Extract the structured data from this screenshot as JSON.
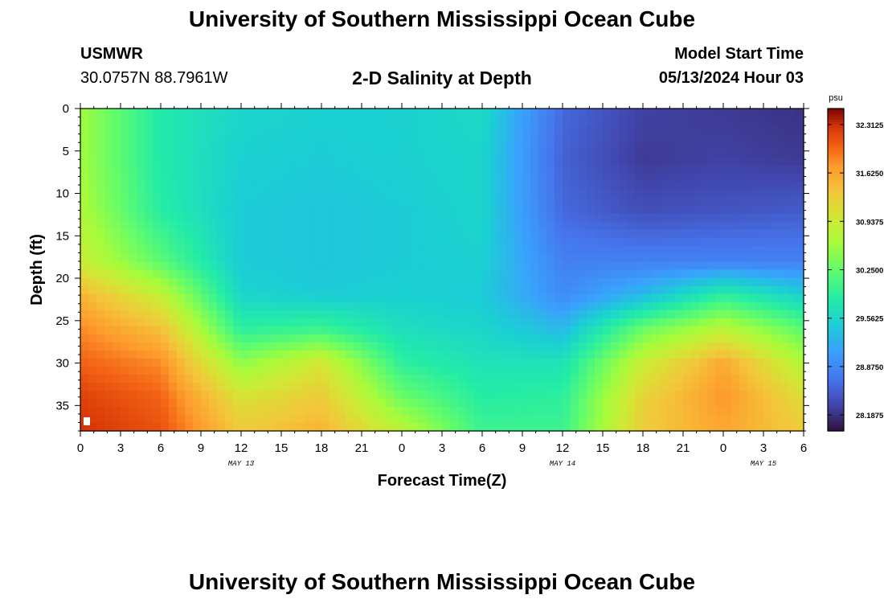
{
  "header": {
    "title": "University of Southern Mississippi Ocean Cube",
    "station": "USMWR",
    "coordinates": "30.0757N  88.7961W",
    "subtitle": "2-D Salinity at Depth",
    "model_start_label": "Model Start Time",
    "model_start_value": "05/13/2024 Hour 03"
  },
  "footer": {
    "title": "University of Southern Mississippi Ocean Cube"
  },
  "chart_data": {
    "type": "heatmap",
    "title": "2-D Salinity at Depth",
    "xlabel": "Forecast Time(Z)",
    "ylabel": "Depth (ft)",
    "x_range_hours": [
      0,
      54
    ],
    "y_range_ft": [
      0,
      38
    ],
    "x_ticks": [
      {
        "hour": 0,
        "label": "0"
      },
      {
        "hour": 3,
        "label": "3"
      },
      {
        "hour": 6,
        "label": "6"
      },
      {
        "hour": 9,
        "label": "9"
      },
      {
        "hour": 12,
        "label": "12"
      },
      {
        "hour": 15,
        "label": "15"
      },
      {
        "hour": 18,
        "label": "18"
      },
      {
        "hour": 21,
        "label": "21"
      },
      {
        "hour": 24,
        "label": "0"
      },
      {
        "hour": 27,
        "label": "3"
      },
      {
        "hour": 30,
        "label": "6"
      },
      {
        "hour": 33,
        "label": "9"
      },
      {
        "hour": 36,
        "label": "12"
      },
      {
        "hour": 39,
        "label": "15"
      },
      {
        "hour": 42,
        "label": "18"
      },
      {
        "hour": 45,
        "label": "21"
      },
      {
        "hour": 48,
        "label": "0"
      },
      {
        "hour": 51,
        "label": "3"
      },
      {
        "hour": 54,
        "label": "6"
      }
    ],
    "date_labels": [
      {
        "hour": 12,
        "label": "MAY 13"
      },
      {
        "hour": 36,
        "label": "MAY 14"
      },
      {
        "hour": 51,
        "label": "MAY 15"
      }
    ],
    "y_ticks": [
      0,
      5,
      10,
      15,
      20,
      25,
      30,
      35
    ],
    "colorbar": {
      "unit": "psu",
      "min": 27.96,
      "max": 32.54,
      "tick_values": [
        28.1875,
        28.875,
        29.5625,
        30.25,
        30.9375,
        31.625,
        32.3125
      ],
      "tick_labels": [
        "28.1875",
        "28.8750",
        "29.5625",
        "30.2500",
        "30.9375",
        "31.6250",
        "32.3125"
      ]
    },
    "grid": {
      "x_hours": [
        0,
        6,
        12,
        18,
        24,
        30,
        36,
        42,
        48,
        54
      ],
      "depths_ft": [
        0,
        6,
        12,
        18,
        22,
        26,
        30,
        34,
        38
      ],
      "salinity_psu": [
        [
          30.6,
          29.8,
          29.55,
          29.5,
          29.5,
          29.6,
          28.6,
          28.3,
          28.25,
          28.2
        ],
        [
          30.6,
          29.8,
          29.5,
          29.45,
          29.5,
          29.55,
          28.55,
          28.25,
          28.3,
          28.25
        ],
        [
          30.7,
          29.85,
          29.45,
          29.4,
          29.45,
          29.55,
          28.6,
          28.4,
          28.45,
          28.5
        ],
        [
          30.9,
          30.2,
          29.45,
          29.4,
          29.45,
          29.5,
          28.8,
          28.8,
          28.8,
          28.8
        ],
        [
          31.5,
          30.85,
          29.55,
          29.45,
          29.5,
          29.45,
          28.9,
          29.3,
          29.9,
          29.5
        ],
        [
          31.8,
          31.4,
          29.9,
          30.0,
          29.65,
          29.55,
          29.3,
          30.3,
          30.8,
          30.2
        ],
        [
          32.0,
          31.8,
          30.5,
          31.0,
          29.9,
          29.7,
          29.7,
          30.9,
          31.6,
          30.7
        ],
        [
          32.2,
          32.0,
          31.05,
          31.3,
          30.3,
          29.85,
          29.9,
          31.2,
          31.75,
          31.1
        ],
        [
          32.3,
          32.1,
          31.3,
          31.5,
          30.8,
          30.0,
          30.0,
          31.3,
          31.6,
          31.3
        ]
      ]
    }
  }
}
